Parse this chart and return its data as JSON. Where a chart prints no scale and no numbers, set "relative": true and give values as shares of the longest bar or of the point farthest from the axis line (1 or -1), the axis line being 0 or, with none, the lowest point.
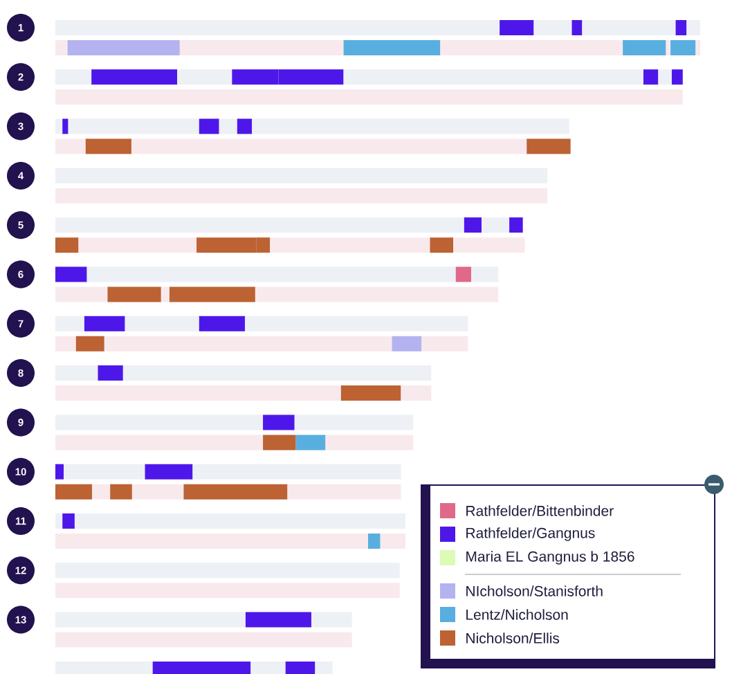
{
  "chart_data": {
    "type": "bar",
    "orientation": "horizontal",
    "stacked": true,
    "relative": true,
    "legend": "bottom right",
    "categories": [
      "1",
      null,
      "2",
      null,
      "3",
      null,
      "4",
      null,
      "5",
      null,
      "6",
      null,
      "7",
      null,
      "8",
      null,
      "9",
      null,
      "10",
      null,
      "11",
      null,
      "12",
      null,
      "13",
      null,
      null
    ],
    "series": [
      {
        "values": [
          0.689,
          0.019,
          0.056,
          0.973,
          0.011,
          0.047,
          0.763,
          0.763,
          0.634,
          null,
          null,
          0.081,
          0.045,
          0.032,
          0.066,
          0.443,
          0.322,
          0.322,
          null,
          null,
          0.011,
          0.485,
          0.534,
          0.534,
          0.295,
          0.46,
          0.151
        ],
        "colors": [
          "#edf0f5",
          "#f8e9ed",
          "#edf0f5",
          "#f8e9ed",
          "#edf0f5",
          "#f8e9ed",
          "#edf0f5",
          "#f8e9ed",
          "#edf0f5",
          null,
          null,
          "#f8e9ed",
          "#edf0f5",
          "#f8e9ed",
          "#edf0f5",
          "#f8e9ed",
          "#edf0f5",
          "#f8e9ed",
          null,
          null,
          "#edf0f5",
          "#f8e9ed",
          "#edf0f5",
          "#f8e9ed",
          "#edf0f5",
          "#f8e9ed",
          "#edf0f5"
        ]
      },
      {
        "values": [
          0.053,
          0.174,
          0.133,
          null,
          0.009,
          0.071,
          null,
          null,
          0.027,
          0.036,
          0.049,
          0.083,
          0.063,
          0.044,
          0.039,
          0.093,
          0.049,
          0.051,
          0.013,
          0.057,
          0.019,
          0.019,
          null,
          null,
          0.102,
          null,
          0.113
        ],
        "colors": [
          "#4e17ea",
          "#b4b2ef",
          "#4e17ea",
          null,
          "#4e17ea",
          "#bc6233",
          null,
          null,
          "#4e17ea",
          "#bc6233",
          "#4e17ea",
          "#bc6233",
          "#4e17ea",
          "#bc6233",
          "#4e17ea",
          "#bc6233",
          "#4e17ea",
          "#bc6233",
          "#4e17ea",
          "#bc6233",
          "#4e17ea",
          "#59aee0",
          null,
          null,
          "#4e17ea",
          null,
          "#4e17ea"
        ]
      },
      {
        "values": [
          0.059,
          0.254,
          0.085,
          null,
          0.203,
          0.613,
          null,
          null,
          0.043,
          0.183,
          0.572,
          0.013,
          0.115,
          0.446,
          0.478,
          0.047,
          0.184,
          null,
          0.126,
          0.028,
          0.513,
          0.039,
          null,
          null,
          0.063,
          null,
          null
        ],
        "colors": [
          "#edf0f5",
          "#f8e9ed",
          "#edf0f5",
          null,
          "#edf0f5",
          "#f8e9ed",
          null,
          null,
          "#edf0f5",
          "#f8e9ed",
          "#edf0f5",
          "#f8e9ed",
          "#edf0f5",
          "#f8e9ed",
          "#edf0f5",
          "#f8e9ed",
          "#edf0f5",
          null,
          "#edf0f5",
          "#f8e9ed",
          "#edf0f5",
          "#f8e9ed",
          null,
          null,
          "#edf0f5",
          null,
          null
        ]
      },
      {
        "values": [
          0.016,
          0.15,
          0.072,
          null,
          0.031,
          0.068,
          null,
          null,
          0.021,
          0.093,
          0.024,
          0.133,
          0.071,
          0.046,
          null,
          null,
          null,
          0.046,
          0.074,
          0.034,
          null,
          null,
          null,
          null,
          null,
          null,
          0.039
        ],
        "colors": [
          "#4e17ea",
          "#59aee0",
          "#4e17ea",
          null,
          "#4e17ea",
          "#bc6233",
          null,
          null,
          "#4e17ea",
          "#bc6233",
          "#e0688a",
          "#bc6233",
          "#4e17ea",
          "#b4b2ef",
          null,
          null,
          null,
          "#59aee0",
          "#4e17ea",
          "#bc6233",
          null,
          null,
          null,
          null,
          null,
          null,
          "#4e17ea"
        ]
      },
      {
        "values": [
          0.145,
          0.283,
          null,
          null,
          0.028,
          null,
          null,
          null,
          null,
          null,
          0.042,
          0.377,
          0.346,
          0.072,
          null,
          null,
          null,
          0.136,
          0.323,
          0.08,
          null,
          null,
          null,
          null,
          null,
          null,
          0.054
        ],
        "colors": [
          "#edf0f5",
          "#f8e9ed",
          null,
          null,
          "#edf0f5",
          null,
          null,
          null,
          null,
          null,
          "#edf0f5",
          "#f8e9ed",
          "#edf0f5",
          "#f8e9ed",
          null,
          null,
          null,
          "#f8e9ed",
          "#edf0f5",
          "#f8e9ed",
          null,
          null,
          null,
          null,
          null,
          null,
          "#edf0f5"
        ]
      },
      {
        "values": [
          0.017,
          0.067,
          0.101,
          null,
          0.023,
          null,
          null,
          null,
          null,
          0.021,
          null,
          null,
          null,
          null,
          null,
          null,
          null,
          null,
          null,
          0.161,
          null,
          null,
          null,
          null,
          null,
          null,
          0.046
        ],
        "colors": [
          "#4e17ea",
          "#59aee0",
          "#4e17ea",
          null,
          "#4e17ea",
          null,
          null,
          null,
          null,
          "#bc6233",
          null,
          null,
          null,
          null,
          null,
          null,
          null,
          null,
          null,
          "#bc6233",
          null,
          null,
          null,
          null,
          null,
          null,
          "#4e17ea"
        ]
      },
      {
        "values": [
          0.021,
          0.007,
          0.465,
          null,
          0.492,
          null,
          null,
          null,
          null,
          0.248,
          null,
          null,
          null,
          null,
          null,
          null,
          null,
          null,
          null,
          0.176,
          null,
          null,
          null,
          null,
          null,
          null,
          0.027
        ],
        "colors": [
          "#edf0f5",
          "#f8e9ed",
          "#edf0f5",
          null,
          "#edf0f5",
          null,
          null,
          null,
          null,
          "#f8e9ed",
          null,
          null,
          null,
          null,
          null,
          null,
          null,
          null,
          null,
          "#f8e9ed",
          null,
          null,
          null,
          null,
          null,
          null,
          "#edf0f5"
        ]
      },
      {
        "values": [
          null,
          0.039,
          0.023,
          null,
          null,
          null,
          null,
          null,
          null,
          0.036,
          null,
          null,
          null,
          null,
          null,
          null,
          null,
          null,
          null,
          null,
          null,
          null,
          null,
          null,
          null,
          null,
          null
        ],
        "colors": [
          null,
          "#59aee0",
          "#4e17ea",
          null,
          null,
          null,
          null,
          null,
          null,
          "#bc6233",
          null,
          null,
          null,
          null,
          null,
          null,
          null,
          null,
          null,
          null,
          null,
          null,
          null,
          null,
          null,
          null,
          null
        ]
      },
      {
        "values": [
          null,
          0.007,
          0.021,
          null,
          null,
          null,
          null,
          null,
          null,
          0.111,
          null,
          null,
          null,
          null,
          null,
          null,
          null,
          null,
          null,
          null,
          null,
          null,
          null,
          null,
          null,
          null,
          null
        ],
        "colors": [
          null,
          "#f8e9ed",
          "#edf0f5",
          null,
          null,
          null,
          null,
          null,
          null,
          "#f8e9ed",
          null,
          null,
          null,
          null,
          null,
          null,
          null,
          null,
          null,
          null,
          null,
          null,
          null,
          null,
          null,
          null,
          null
        ]
      },
      {
        "values": [
          null,
          null,
          0.017,
          null,
          null,
          null,
          null,
          null,
          null,
          null,
          null,
          null,
          null,
          null,
          null,
          null,
          null,
          null,
          null,
          null,
          null,
          null,
          null,
          null,
          null,
          null,
          null
        ],
        "colors": [
          null,
          null,
          "#4e17ea",
          null,
          null,
          null,
          null,
          null,
          null,
          null,
          null,
          null,
          null,
          null,
          null,
          null,
          null,
          null,
          null,
          null,
          null,
          null,
          null,
          null,
          null,
          null,
          null
        ]
      },
      {
        "name": "Rathfelder/Bittenbinder",
        "color": "#e0688a",
        "values": [
          null,
          null,
          null,
          null,
          null,
          null,
          null,
          null,
          null,
          null,
          null,
          null,
          null,
          null,
          null,
          null,
          null,
          null,
          null,
          null,
          null,
          null,
          null,
          null,
          null,
          null,
          null
        ]
      },
      {
        "name": "Rathfelder/Gangnus",
        "color": "#4e17ea",
        "values": [
          null,
          null,
          null,
          null,
          null,
          null,
          null,
          null,
          null,
          null,
          null,
          null,
          null,
          null,
          null,
          null,
          null,
          null,
          null,
          null,
          null,
          null,
          null,
          null,
          null,
          null,
          null
        ]
      },
      {
        "name": "Maria EL Gangnus b 1856",
        "color": "#dcfbb5",
        "values": [
          null,
          null,
          null,
          null,
          null,
          null,
          null,
          null,
          null,
          null,
          null,
          null,
          null,
          null,
          null,
          null,
          null,
          null,
          null,
          null,
          null,
          null,
          null,
          null,
          null,
          null,
          null
        ]
      },
      {
        "name": "NIcholson/Stanisforth",
        "color": "#b4b2ef",
        "values": [
          null,
          null,
          null,
          null,
          null,
          null,
          null,
          null,
          null,
          null,
          null,
          null,
          null,
          null,
          null,
          null,
          null,
          null,
          null,
          null,
          null,
          null,
          null,
          null,
          null,
          null,
          null
        ]
      },
      {
        "name": "Lentz/Nicholson",
        "color": "#59aee0",
        "values": [
          null,
          null,
          null,
          null,
          null,
          null,
          null,
          null,
          null,
          null,
          null,
          null,
          null,
          null,
          null,
          null,
          null,
          null,
          null,
          null,
          null,
          null,
          null,
          null,
          null,
          null,
          null
        ]
      },
      {
        "name": "Nicholson/Ellis",
        "color": "#bc6233",
        "values": [
          null,
          null,
          null,
          null,
          null,
          null,
          null,
          null,
          null,
          null,
          null,
          null,
          null,
          null,
          null,
          null,
          null,
          null,
          null,
          null,
          null,
          null,
          null,
          null,
          null,
          null,
          null
        ]
      }
    ]
  }
}
